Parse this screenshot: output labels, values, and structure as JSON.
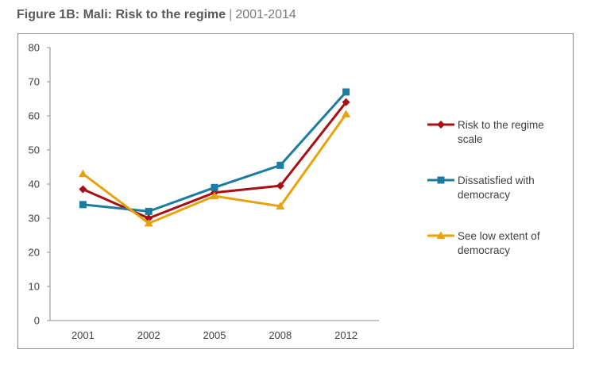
{
  "figure": {
    "title_bold": "Figure 1B: Mali: Risk to the regime",
    "separator": "|",
    "title_years": "2001-2014"
  },
  "chart_data": {
    "type": "line",
    "categories": [
      "2001",
      "2002",
      "2005",
      "2008",
      "2012"
    ],
    "ylim": [
      0,
      80
    ],
    "yticks": [
      0,
      10,
      20,
      30,
      40,
      50,
      60,
      70,
      80
    ],
    "grid": false,
    "legend_position": "right",
    "series": [
      {
        "name": "Risk to the regime scale",
        "legend_lines": [
          "Risk to the regime",
          "scale"
        ],
        "values": [
          38.5,
          30,
          37.5,
          39.5,
          64
        ],
        "color": "#a80e12",
        "marker": "diamond"
      },
      {
        "name": "Dissatisfied with democracy",
        "legend_lines": [
          "Dissatisfied with",
          "democracy"
        ],
        "values": [
          34,
          32,
          39,
          45.5,
          67
        ],
        "color": "#1a7da0",
        "marker": "square"
      },
      {
        "name": "See low extent of democracy",
        "legend_lines": [
          "See low extent of",
          "democracy"
        ],
        "values": [
          43,
          28.5,
          36.5,
          33.5,
          60.5
        ],
        "color": "#e8a20c",
        "marker": "triangle"
      }
    ]
  }
}
